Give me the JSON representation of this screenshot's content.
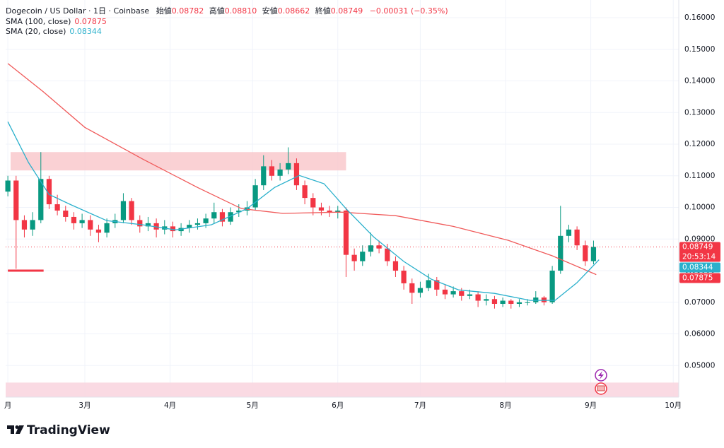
{
  "header": {
    "symbol": "Dogecoin / US Dollar · 1日 · Coinbase",
    "ohlc": [
      {
        "label": "始値",
        "value": "0.08782"
      },
      {
        "label": "高値",
        "value": "0.08810"
      },
      {
        "label": "安値",
        "value": "0.08662"
      },
      {
        "label": "終値",
        "value": "0.08749"
      }
    ],
    "change": "−0.00031 (−0.35%)",
    "countdown": "20:53:14",
    "brand": "TradingView"
  },
  "chart_data": {
    "type": "candlestick",
    "up_color": "#089981",
    "down_color": "#f23645",
    "x": [
      0,
      3,
      6,
      9,
      12,
      15,
      18,
      21,
      24,
      27,
      30,
      33,
      36,
      39,
      42,
      45,
      48,
      51,
      54,
      57,
      60,
      63,
      66,
      69,
      72,
      75,
      78,
      81,
      84,
      87,
      90,
      93,
      96,
      99,
      102,
      105,
      108,
      111,
      114,
      117,
      120,
      123,
      126,
      129,
      132,
      135,
      138,
      141,
      144,
      147,
      150,
      153,
      156,
      159,
      162,
      165,
      168,
      171,
      174,
      177,
      180,
      183,
      186,
      189,
      192,
      195,
      198,
      201,
      204,
      207,
      210,
      213
    ],
    "open": [
      0.105,
      0.1085,
      0.096,
      0.093,
      0.096,
      0.109,
      0.101,
      0.099,
      0.097,
      0.095,
      0.096,
      0.093,
      0.092,
      0.095,
      0.096,
      0.102,
      0.096,
      0.094,
      0.095,
      0.093,
      0.094,
      0.0925,
      0.0935,
      0.0945,
      0.095,
      0.0965,
      0.0985,
      0.0955,
      0.0985,
      0.099,
      0.1,
      0.107,
      0.113,
      0.11,
      0.112,
      0.114,
      0.107,
      0.103,
      0.1,
      0.099,
      0.0985,
      0.099,
      0.085,
      0.083,
      0.086,
      0.088,
      0.087,
      0.083,
      0.08,
      0.076,
      0.073,
      0.0745,
      0.077,
      0.074,
      0.0725,
      0.0735,
      0.072,
      0.0725,
      0.0705,
      0.071,
      0.0695,
      0.0705,
      0.0695,
      0.07,
      0.07,
      0.0715,
      0.07,
      0.08,
      0.091,
      0.093,
      0.088,
      0.083
    ],
    "high": [
      0.11,
      0.11,
      0.0975,
      0.0985,
      0.1175,
      0.11,
      0.104,
      0.1005,
      0.0985,
      0.098,
      0.0975,
      0.0945,
      0.0965,
      0.098,
      0.1045,
      0.103,
      0.0975,
      0.097,
      0.0965,
      0.096,
      0.0955,
      0.095,
      0.096,
      0.0965,
      0.098,
      0.1015,
      0.0995,
      0.1,
      0.101,
      0.102,
      0.109,
      0.1165,
      0.115,
      0.114,
      0.119,
      0.1155,
      0.1085,
      0.1045,
      0.1015,
      0.1005,
      0.1005,
      0.1,
      0.087,
      0.088,
      0.092,
      0.0895,
      0.0885,
      0.0845,
      0.0815,
      0.0775,
      0.0765,
      0.079,
      0.078,
      0.0755,
      0.075,
      0.0745,
      0.074,
      0.0735,
      0.0725,
      0.072,
      0.0715,
      0.071,
      0.071,
      0.071,
      0.0735,
      0.072,
      0.0815,
      0.1005,
      0.0945,
      0.094,
      0.0895,
      0.0895
    ],
    "low": [
      0.1035,
      0.0806,
      0.0905,
      0.091,
      0.095,
      0.0995,
      0.0975,
      0.0955,
      0.093,
      0.0935,
      0.091,
      0.089,
      0.0905,
      0.0935,
      0.095,
      0.0945,
      0.092,
      0.0925,
      0.0905,
      0.0915,
      0.0905,
      0.091,
      0.092,
      0.093,
      0.0935,
      0.095,
      0.094,
      0.0945,
      0.097,
      0.0975,
      0.099,
      0.1055,
      0.1085,
      0.1085,
      0.1105,
      0.1055,
      0.101,
      0.0975,
      0.0975,
      0.097,
      0.0965,
      0.078,
      0.08,
      0.0815,
      0.0845,
      0.0855,
      0.0815,
      0.078,
      0.074,
      0.0695,
      0.0715,
      0.0735,
      0.072,
      0.071,
      0.0715,
      0.0705,
      0.071,
      0.0685,
      0.069,
      0.068,
      0.0685,
      0.068,
      0.0685,
      0.069,
      0.0695,
      0.069,
      0.0695,
      0.079,
      0.089,
      0.0865,
      0.0815,
      0.082
    ],
    "close": [
      0.1085,
      0.096,
      0.093,
      0.096,
      0.109,
      0.101,
      0.099,
      0.097,
      0.095,
      0.096,
      0.093,
      0.092,
      0.095,
      0.096,
      0.102,
      0.096,
      0.094,
      0.095,
      0.093,
      0.094,
      0.0925,
      0.0935,
      0.0945,
      0.095,
      0.0965,
      0.0985,
      0.0955,
      0.0985,
      0.099,
      0.1,
      0.107,
      0.113,
      0.11,
      0.112,
      0.114,
      0.107,
      0.103,
      0.1,
      0.099,
      0.0985,
      0.099,
      0.085,
      0.083,
      0.086,
      0.088,
      0.087,
      0.083,
      0.08,
      0.076,
      0.073,
      0.0745,
      0.077,
      0.074,
      0.0725,
      0.0735,
      0.072,
      0.0725,
      0.0705,
      0.071,
      0.0695,
      0.0705,
      0.0695,
      0.07,
      0.07,
      0.0715,
      0.07,
      0.08,
      0.091,
      0.093,
      0.088,
      0.083,
      0.08749
    ],
    "series": [
      {
        "name": "SMA (100, close)",
        "color": "#f05a5a",
        "x": [
          0,
          13,
          28,
          49,
          69,
          85,
          100,
          121,
          141,
          162,
          182,
          198,
          214
        ],
        "values": [
          0.1455,
          0.1365,
          0.1253,
          0.1153,
          0.1063,
          0.0996,
          0.0981,
          0.0985,
          0.0974,
          0.094,
          0.0896,
          0.0847,
          0.07875
        ]
      },
      {
        "name": "SMA (20, close)",
        "color": "#2ab0cc",
        "x": [
          0,
          7.5,
          15,
          23,
          36,
          49,
          61,
          74,
          87,
          97,
          106,
          115,
          123,
          133,
          144,
          154,
          164,
          177,
          190,
          199,
          207,
          215
        ],
        "values": [
          0.1271,
          0.1142,
          0.1041,
          0.1008,
          0.0958,
          0.0945,
          0.0929,
          0.0945,
          0.0996,
          0.1063,
          0.1101,
          0.1075,
          0.0996,
          0.0907,
          0.0829,
          0.0773,
          0.0739,
          0.0728,
          0.0706,
          0.0706,
          0.0762,
          0.08344
        ]
      }
    ],
    "zones": [
      {
        "x": [
          1,
          123
        ],
        "y": [
          0.1117,
          0.1175
        ],
        "color": "#f9c9cc"
      },
      {
        "x": [
          -0.8,
          244
        ],
        "y": [
          0.04,
          0.0446
        ],
        "color": "#f9d3de"
      }
    ],
    "levels": [
      {
        "x": [
          0,
          13
        ],
        "y": 0.08,
        "color": "#f23645"
      }
    ],
    "xlim": [
      -0.8,
      244
    ],
    "xticks": [
      {
        "value": 0,
        "label": "月"
      },
      {
        "value": 28,
        "label": "3月"
      },
      {
        "value": 59,
        "label": "4月"
      },
      {
        "value": 89,
        "label": "5月"
      },
      {
        "value": 120,
        "label": "6月"
      },
      {
        "value": 150,
        "label": "7月"
      },
      {
        "value": 181,
        "label": "8月"
      },
      {
        "value": 212,
        "label": "9月"
      },
      {
        "value": 242,
        "label": "10月"
      }
    ],
    "ylim": [
      0.04,
      0.1656
    ],
    "yticks": [
      {
        "value": 0.05,
        "label": "0.05000"
      },
      {
        "value": 0.06,
        "label": "0.06000"
      },
      {
        "value": 0.07,
        "label": "0.07000"
      },
      {
        "value": 0.08,
        "label": "0.08000"
      },
      {
        "value": 0.09,
        "label": "0.09000"
      },
      {
        "value": 0.1,
        "label": "0.10000"
      },
      {
        "value": 0.11,
        "label": "0.11000"
      },
      {
        "value": 0.12,
        "label": "0.12000"
      },
      {
        "value": 0.13,
        "label": "0.13000"
      },
      {
        "value": 0.14,
        "label": "0.14000"
      },
      {
        "value": 0.15,
        "label": "0.15000"
      },
      {
        "value": 0.16,
        "label": "0.16000"
      }
    ],
    "grid": true
  }
}
